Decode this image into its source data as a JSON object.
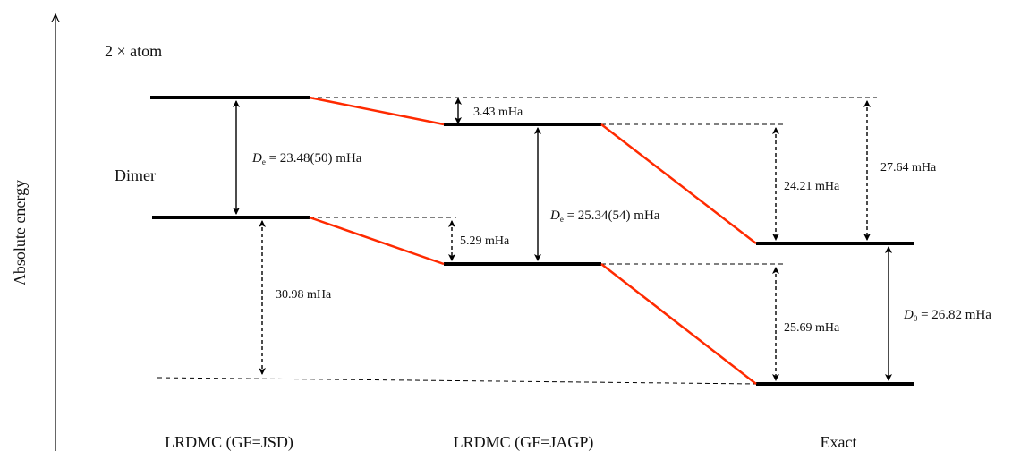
{
  "axis": {
    "label": "Absolute energy"
  },
  "top_label": "2 × atom",
  "dimer_label": "Dimer",
  "columns": [
    "LRDMC (GF=JSD)",
    "LRDMC (GF=JAGP)",
    "Exact"
  ],
  "de_jsd": {
    "symbol": "D",
    "sub": "e",
    "text": " = 23.48(50) mHa"
  },
  "de_jagp": {
    "symbol": "D",
    "sub": "e",
    "text": " = 25.34(54) mHa"
  },
  "d0_exact": {
    "symbol": "D",
    "sub": "0",
    "text": " = 26.82 mHa"
  },
  "gaps": {
    "atom_jsd_jagp": "3.43 mHa",
    "dimer_jsd_jagp": "5.29 mHa",
    "dimer_jsd_exact": "30.98 mHa",
    "atom_jagp_exact": "24.21 mHa",
    "atom_jsd_exact": "27.64 mHa",
    "dimer_jagp_exact": "25.69 mHa"
  }
}
